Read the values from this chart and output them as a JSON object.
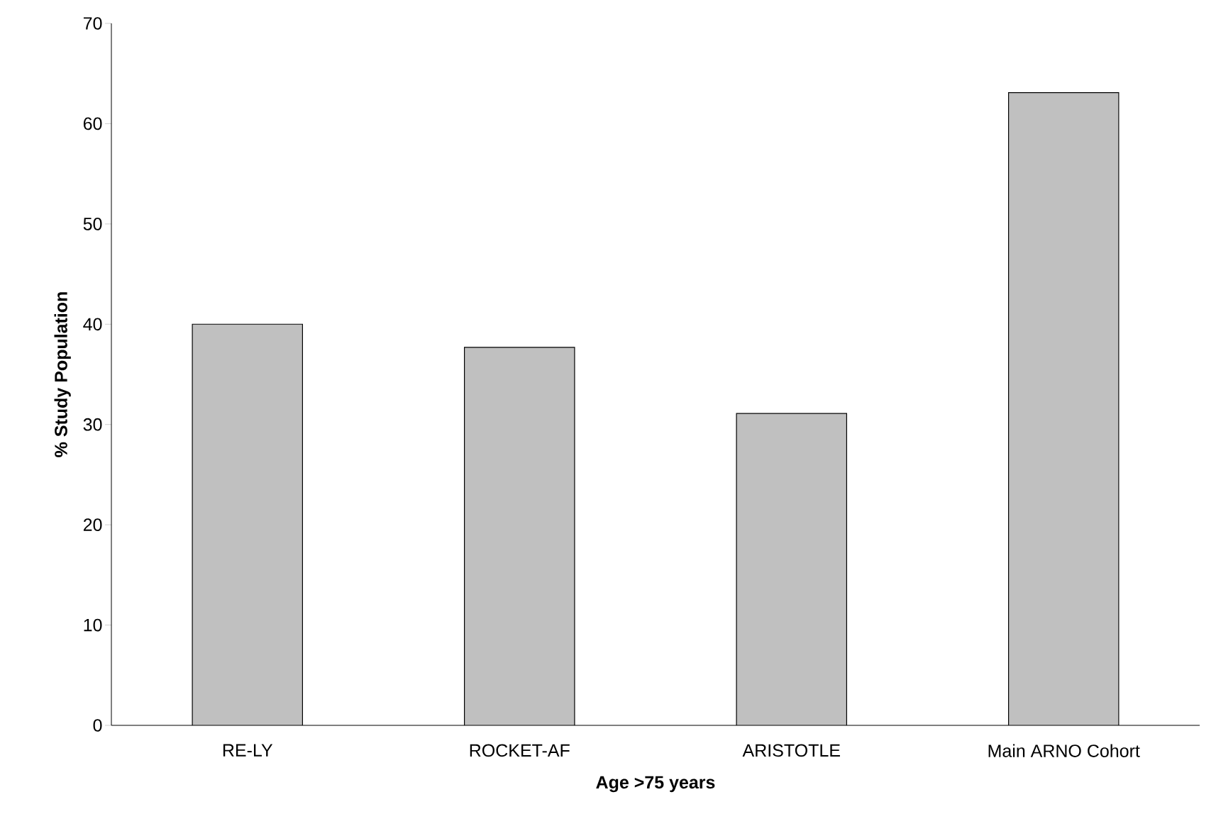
{
  "chart_data": {
    "type": "bar",
    "xlabel": "Age >75 years",
    "ylabel": "% Study Population",
    "categories": [
      "RE-LY",
      "ROCKET-AF",
      "ARISTOTLE",
      "Main ARNO Cohort"
    ],
    "values": [
      40.0,
      37.7,
      31.1,
      63.1
    ],
    "color": "#c0c0c0",
    "ylim": [
      0,
      70
    ],
    "yticks": [
      0,
      10,
      20,
      30,
      40,
      50,
      60,
      70
    ],
    "grid": false
  }
}
